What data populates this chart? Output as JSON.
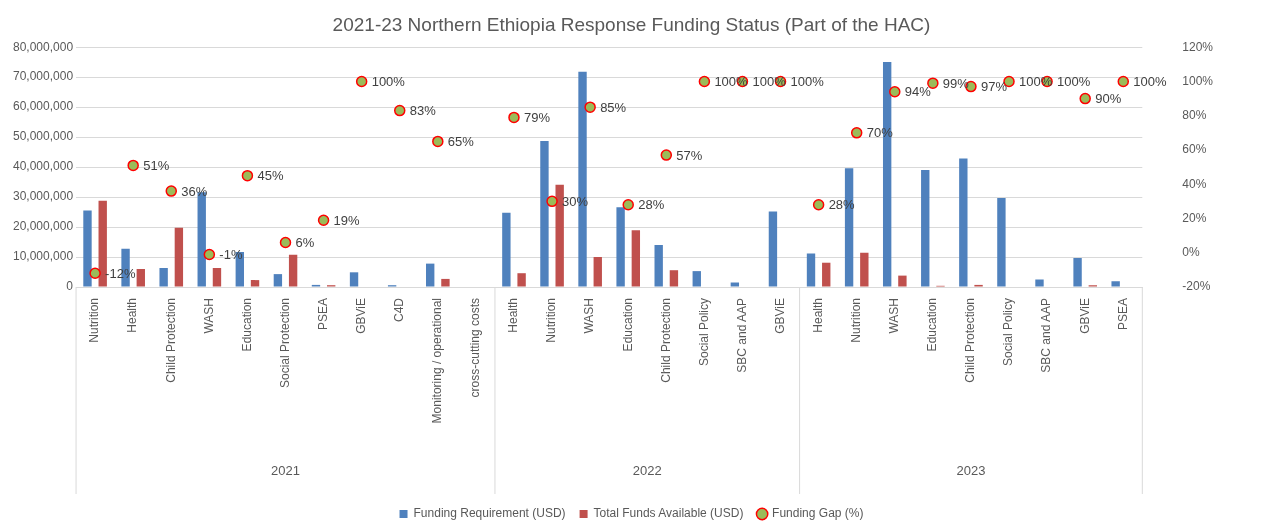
{
  "chart_data": {
    "type": "bar",
    "title": "2021-23 Northern Ethiopia Response Funding Status (Part of the HAC)",
    "categories": [
      "Nutrition",
      "Health",
      "Child Protection",
      "WASH",
      "Education",
      "Social Protection",
      "PSEA",
      "GBViE",
      "C4D",
      "Monitoring / operational",
      "cross-cutting costs",
      "Health",
      "Nutrition",
      "WASH",
      "Education",
      "Child Protection",
      "Social Policy",
      "SBC and AAP",
      "GBViE",
      "Health",
      "Nutrition",
      "WASH",
      "Education",
      "Child Protection",
      "Social Policy",
      "SBC and AAP",
      "GBViE",
      "PSEA"
    ],
    "series": [
      {
        "name": "Funding Requirement (USD)",
        "color": "#4f81bd",
        "values": [
          25500000,
          12800000,
          6300000,
          31600000,
          11700000,
          4300000,
          700000,
          4900000,
          600000,
          7800000,
          null,
          24800000,
          48700000,
          71800000,
          26600000,
          14000000,
          5300000,
          1500000,
          25200000,
          11200000,
          39600000,
          75100000,
          39000000,
          42900000,
          29700000,
          2500000,
          9700000,
          1900000
        ]
      },
      {
        "name": "Total Funds Available (USD)",
        "color": "#c0504d",
        "values": [
          28800000,
          6000000,
          19800000,
          6300000,
          2300000,
          10800000,
          600000,
          0,
          0,
          2700000,
          null,
          4600000,
          34100000,
          10000000,
          18900000,
          5600000,
          0,
          0,
          0,
          8100000,
          11400000,
          3800000,
          400000,
          700000,
          0,
          0,
          600000,
          0
        ]
      },
      {
        "name": "Funding Gap (%)",
        "type": "scatter",
        "axis": "y2",
        "color": "#9bbb59",
        "marker": "circle",
        "values": [
          -12,
          51,
          36,
          -1,
          45,
          6,
          19,
          100,
          83,
          65,
          null,
          79,
          30,
          85,
          28,
          57,
          100,
          100,
          100,
          28,
          70,
          94,
          99,
          97,
          100,
          100,
          90,
          100
        ],
        "value_labels": [
          "-12%",
          "51%",
          "36%",
          "-1%",
          "45%",
          "6%",
          "19%",
          "100%",
          "83%",
          "65%",
          null,
          "79%",
          "30%",
          "85%",
          "28%",
          "57%",
          "100%",
          "100%",
          "100%",
          "28%",
          "70%",
          "94%",
          "99%",
          "97%",
          "100%",
          "100%",
          "90%",
          "100%"
        ]
      }
    ],
    "ylim": [
      0,
      80000000
    ],
    "yticks": [
      {
        "value": 0,
        "label": "0"
      },
      {
        "value": 10000000,
        "label": "10,000,000"
      },
      {
        "value": 20000000,
        "label": "20,000,000"
      },
      {
        "value": 30000000,
        "label": "30,000,000"
      },
      {
        "value": 40000000,
        "label": "40,000,000"
      },
      {
        "value": 50000000,
        "label": "50,000,000"
      },
      {
        "value": 60000000,
        "label": "60,000,000"
      },
      {
        "value": 70000000,
        "label": "70,000,000"
      },
      {
        "value": 80000000,
        "label": "80,000,000"
      }
    ],
    "y2lim": [
      -20,
      120
    ],
    "y2ticks": [
      {
        "value": -20,
        "label": "-20%"
      },
      {
        "value": 0,
        "label": "0%"
      },
      {
        "value": 20,
        "label": "20%"
      },
      {
        "value": 40,
        "label": "40%"
      },
      {
        "value": 60,
        "label": "60%"
      },
      {
        "value": 80,
        "label": "80%"
      },
      {
        "value": 100,
        "label": "100%"
      },
      {
        "value": 120,
        "label": "120%"
      }
    ],
    "annotations": [
      "2021",
      "2022",
      "2023"
    ],
    "grid": "y",
    "legend": "bottom"
  }
}
